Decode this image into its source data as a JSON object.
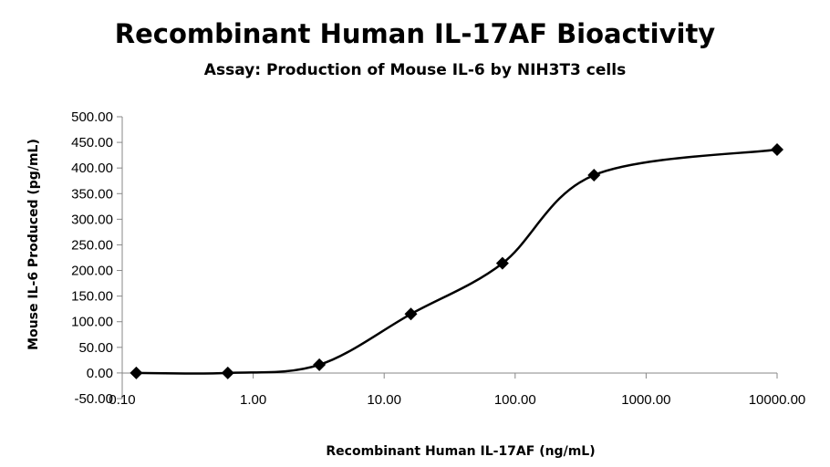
{
  "chart_data": {
    "type": "line",
    "title": "Recombinant Human IL-17AF Bioactivity",
    "subtitle": "Assay: Production of Mouse IL-6 by NIH3T3 cells",
    "xlabel": "Recombinant Human IL-17AF (ng/mL)",
    "ylabel": "Mouse IL-6 Produced (pg/mL)",
    "x_scale": "log",
    "xlim": [
      0.1,
      10000
    ],
    "ylim": [
      -50,
      500
    ],
    "x_ticks": [
      0.1,
      1,
      10,
      100,
      1000,
      10000
    ],
    "x_tick_labels": [
      "0.10",
      "1.00",
      "10.00",
      "100.00",
      "1000.00",
      "10000.00"
    ],
    "y_ticks": [
      -50,
      0,
      50,
      100,
      150,
      200,
      250,
      300,
      350,
      400,
      450,
      500
    ],
    "y_tick_labels": [
      "-50.00",
      "0.00",
      "50.00",
      "100.00",
      "150.00",
      "200.00",
      "250.00",
      "300.00",
      "350.00",
      "400.00",
      "450.00",
      "500.00"
    ],
    "grid": false,
    "smooth_line": true,
    "marker": "diamond",
    "line_color": "#000000",
    "series": [
      {
        "x": [
          0.128,
          0.64,
          3.2,
          16,
          80,
          400,
          10000
        ],
        "y": [
          0,
          0,
          16,
          115,
          214,
          386,
          436
        ]
      }
    ]
  }
}
